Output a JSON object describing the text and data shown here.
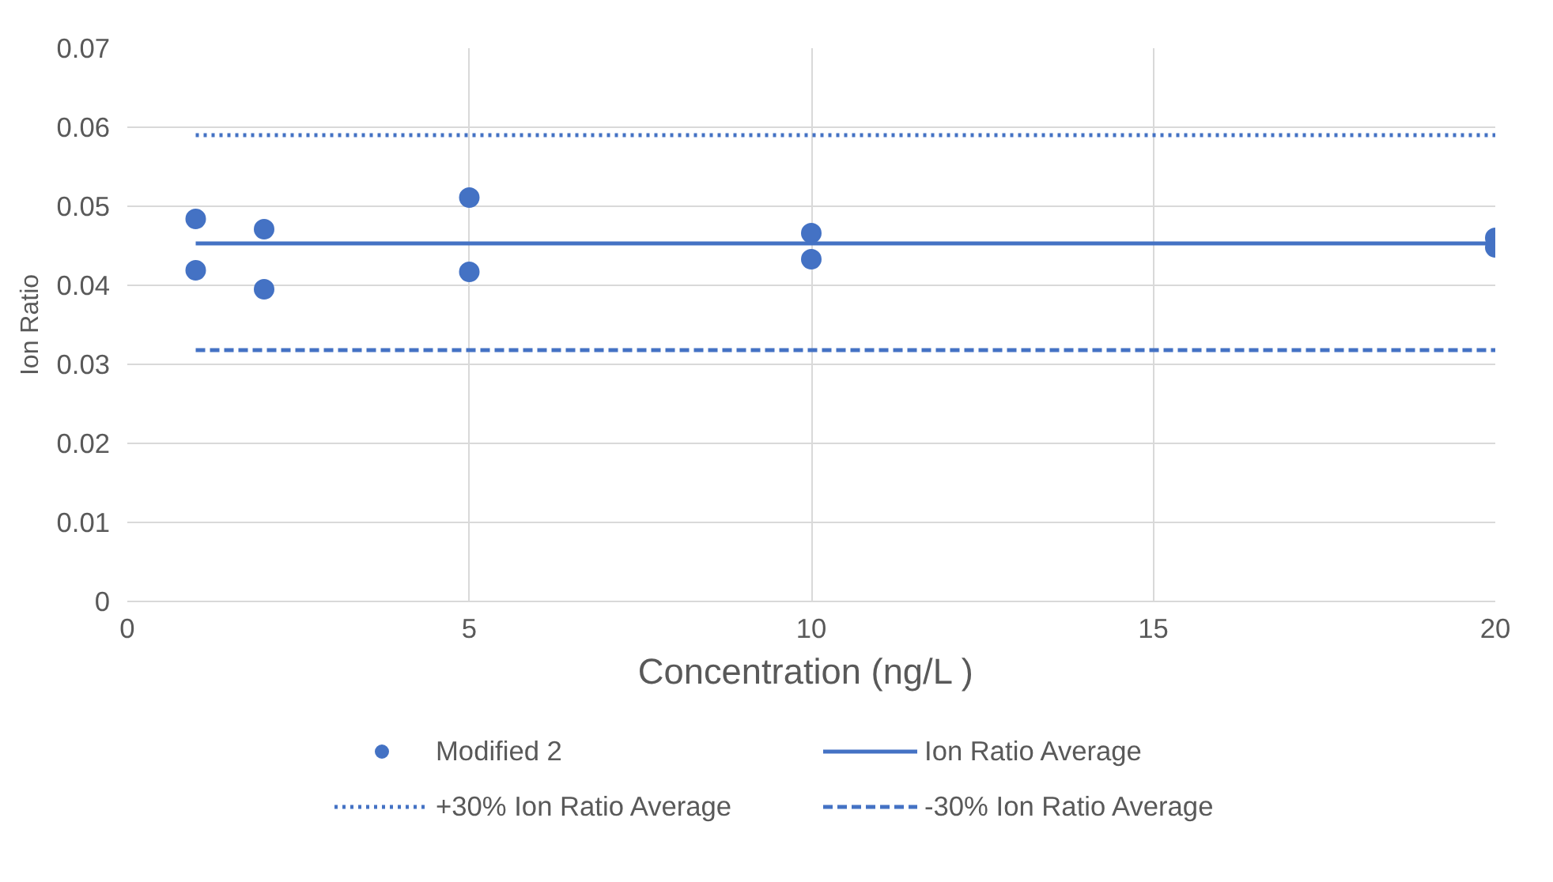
{
  "chart_data": {
    "type": "scatter",
    "xlabel": "Concentration (ng/L  )",
    "ylabel": "Ion Ratio",
    "xlim": [
      0,
      20
    ],
    "xticks": [
      0,
      5,
      10,
      15,
      20
    ],
    "ylim": [
      0,
      0.07
    ],
    "yticks": [
      0,
      0.01,
      0.02,
      0.03,
      0.04,
      0.05,
      0.06,
      0.07
    ],
    "grid": true,
    "legend": "bottom",
    "series": [
      {
        "name": "Modified 2",
        "color": "#4472c4",
        "marker": "circle",
        "x": [
          1,
          1,
          2,
          2,
          5,
          5,
          10,
          10,
          20,
          20
        ],
        "values": [
          0.0484,
          0.0419,
          0.0471,
          0.0395,
          0.0511,
          0.0417,
          0.0466,
          0.0433,
          0.046,
          0.0448
        ]
      },
      {
        "name": "Ion Ratio Average",
        "color": "#4472c4",
        "type": "line",
        "line_style": "solid",
        "x": [
          1,
          20
        ],
        "values": [
          0.0453,
          0.0453
        ]
      },
      {
        "name": "+30% Ion Ratio Average",
        "color": "#4472c4",
        "type": "line",
        "line_style": "dotted",
        "x": [
          1,
          20
        ],
        "values": [
          0.059,
          0.059
        ]
      },
      {
        "name": "-30% Ion Ratio Average",
        "color": "#4472c4",
        "type": "line",
        "line_style": "dashed",
        "x": [
          1,
          20
        ],
        "values": [
          0.0318,
          0.0318
        ]
      }
    ]
  }
}
